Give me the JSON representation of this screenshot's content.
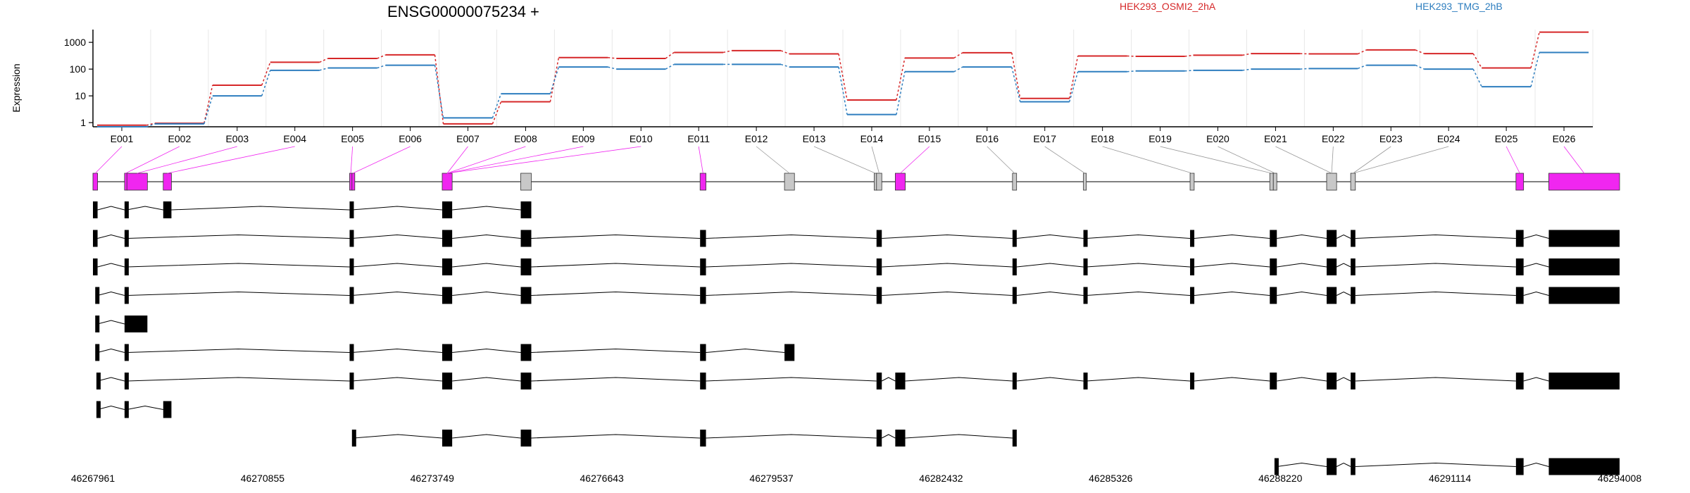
{
  "colors": {
    "series1": "#d62728",
    "series2": "#2e7ebf",
    "highlight": "#f026f0",
    "nonsig": "#c8c8c8",
    "transcript": "#000000",
    "grid": "#e8e8e8"
  },
  "chart_data": {
    "type": "line",
    "title": "ENSG00000075234 +",
    "ylabel": "Expression",
    "xlabel": "",
    "yscale": "log",
    "ylim": [
      0.7,
      3000
    ],
    "yticks": [
      "1",
      "10",
      "100",
      "1000"
    ],
    "categories": [
      "E001",
      "E002",
      "E003",
      "E004",
      "E005",
      "E006",
      "E007",
      "E008",
      "E009",
      "E010",
      "E011",
      "E012",
      "E013",
      "E014",
      "E015",
      "E016",
      "E017",
      "E018",
      "E019",
      "E020",
      "E021",
      "E022",
      "E023",
      "E024",
      "E025",
      "E026"
    ],
    "series": [
      {
        "name": "HEK293_OSMI2_2hA",
        "values": [
          0.8,
          0.95,
          25,
          180,
          250,
          340,
          0.9,
          6,
          270,
          250,
          420,
          490,
          370,
          7,
          260,
          410,
          8,
          310,
          300,
          330,
          380,
          370,
          520,
          380,
          110,
          2400
        ]
      },
      {
        "name": "HEK293_TMG_2hB",
        "values": [
          0.7,
          0.9,
          10,
          90,
          110,
          140,
          1.5,
          12,
          120,
          100,
          150,
          150,
          120,
          2,
          80,
          120,
          6,
          80,
          85,
          90,
          100,
          105,
          140,
          100,
          22,
          420
        ]
      }
    ],
    "genome_ticks": [
      "46267961",
      "46270855",
      "46273749",
      "46276643",
      "46279537",
      "46282432",
      "46285326",
      "46288220",
      "46291114",
      "46294008"
    ],
    "genome_range": [
      46267961,
      46294008
    ],
    "exons": [
      {
        "id": "E001",
        "start": 46267961,
        "end": 46268040,
        "sig": true
      },
      {
        "id": "E002",
        "start": 46268500,
        "end": 46268540,
        "sig": true
      },
      {
        "id": "E003",
        "start": 46268540,
        "end": 46268890,
        "sig": true
      },
      {
        "id": "E004",
        "start": 46269160,
        "end": 46269300,
        "sig": true
      },
      {
        "id": "E005",
        "start": 46272340,
        "end": 46272380,
        "sig": true
      },
      {
        "id": "E006",
        "start": 46272380,
        "end": 46272410,
        "sig": true
      },
      {
        "id": "E007",
        "start": 46273920,
        "end": 46274090,
        "sig": true
      },
      {
        "id": "E008",
        "start": 46275260,
        "end": 46275440,
        "sig": false
      },
      {
        "id": "E009",
        "start": 46278320,
        "end": 46278420,
        "sig": true
      },
      {
        "id": "E010",
        "start": 46279760,
        "end": 46279930,
        "sig": false
      },
      {
        "id": "E011",
        "start": 46281290,
        "end": 46281330,
        "sig": false
      },
      {
        "id": "E012",
        "start": 46281330,
        "end": 46281420,
        "sig": false
      },
      {
        "id": "E013",
        "start": 46281650,
        "end": 46281820,
        "sig": true
      },
      {
        "id": "E014",
        "start": 46283650,
        "end": 46283720,
        "sig": false
      },
      {
        "id": "E015",
        "start": 46284860,
        "end": 46284910,
        "sig": false
      },
      {
        "id": "E016",
        "start": 46286680,
        "end": 46286750,
        "sig": false
      },
      {
        "id": "E017",
        "start": 46288040,
        "end": 46288100,
        "sig": false
      },
      {
        "id": "E018",
        "start": 46288100,
        "end": 46288160,
        "sig": false
      },
      {
        "id": "E019",
        "start": 46289010,
        "end": 46289180,
        "sig": false
      },
      {
        "id": "E020",
        "start": 46289420,
        "end": 46289500,
        "sig": false
      },
      {
        "id": "E021",
        "start": 46292240,
        "end": 46292370,
        "sig": true
      },
      {
        "id": "E022",
        "start": 46292800,
        "end": 46294008,
        "sig": true
      }
    ],
    "exon_label_links": [
      0,
      1,
      2,
      3,
      4,
      5,
      6,
      7,
      8,
      9,
      10,
      12,
      13,
      14,
      14,
      15,
      16,
      19,
      20,
      20,
      21,
      22,
      23,
      23,
      24,
      25
    ],
    "exon_label_links_targets": [
      0,
      1,
      2,
      3,
      4,
      5,
      6,
      6,
      6,
      6,
      8,
      9,
      10,
      11,
      12,
      13,
      14,
      15,
      16,
      17,
      18,
      18,
      19,
      19,
      20,
      21
    ],
    "transcripts": [
      [
        [
          46267961,
          46268040
        ],
        [
          46268500,
          46268540
        ],
        [
          46269160,
          46269300
        ],
        [
          46272340,
          46272380
        ],
        [
          46273920,
          46274090
        ],
        [
          46275260,
          46275440
        ]
      ],
      [
        [
          46267961,
          46268040
        ],
        [
          46268500,
          46268540
        ],
        [
          46272340,
          46272380
        ],
        [
          46273920,
          46274090
        ],
        [
          46275260,
          46275440
        ],
        [
          46278320,
          46278420
        ],
        [
          46281330,
          46281420
        ],
        [
          46283650,
          46283720
        ],
        [
          46284860,
          46284910
        ],
        [
          46286680,
          46286750
        ],
        [
          46288040,
          46288160
        ],
        [
          46289010,
          46289180
        ],
        [
          46289420,
          46289500
        ],
        [
          46292240,
          46292370
        ],
        [
          46292800,
          46294008
        ]
      ],
      [
        [
          46267961,
          46268040
        ],
        [
          46268500,
          46268540
        ],
        [
          46272340,
          46272380
        ],
        [
          46273920,
          46274090
        ],
        [
          46275260,
          46275440
        ],
        [
          46278320,
          46278420
        ],
        [
          46281330,
          46281420
        ],
        [
          46283650,
          46283720
        ],
        [
          46284860,
          46284910
        ],
        [
          46286680,
          46286750
        ],
        [
          46288040,
          46288160
        ],
        [
          46289010,
          46289180
        ],
        [
          46289420,
          46289500
        ],
        [
          46292240,
          46292370
        ],
        [
          46292800,
          46294008
        ]
      ],
      [
        [
          46268000,
          46268040
        ],
        [
          46268500,
          46268540
        ],
        [
          46272340,
          46272380
        ],
        [
          46273920,
          46274090
        ],
        [
          46275260,
          46275440
        ],
        [
          46278320,
          46278420
        ],
        [
          46281330,
          46281420
        ],
        [
          46283650,
          46283720
        ],
        [
          46284860,
          46284910
        ],
        [
          46286680,
          46286750
        ],
        [
          46288040,
          46288160
        ],
        [
          46289010,
          46289180
        ],
        [
          46289420,
          46289500
        ],
        [
          46292240,
          46292370
        ],
        [
          46292800,
          46294008
        ]
      ],
      [
        [
          46268000,
          46268040
        ],
        [
          46268500,
          46268890
        ]
      ],
      [
        [
          46268000,
          46268040
        ],
        [
          46268500,
          46268540
        ],
        [
          46272340,
          46272380
        ],
        [
          46273920,
          46274090
        ],
        [
          46275260,
          46275440
        ],
        [
          46278320,
          46278420
        ],
        [
          46279760,
          46279930
        ]
      ],
      [
        [
          46268020,
          46268040
        ],
        [
          46268500,
          46268540
        ],
        [
          46272340,
          46272380
        ],
        [
          46273920,
          46274090
        ],
        [
          46275260,
          46275440
        ],
        [
          46278320,
          46278420
        ],
        [
          46281330,
          46281420
        ],
        [
          46281650,
          46281820
        ],
        [
          46283650,
          46283720
        ],
        [
          46284860,
          46284910
        ],
        [
          46286680,
          46286750
        ],
        [
          46288040,
          46288160
        ],
        [
          46289010,
          46289180
        ],
        [
          46289420,
          46289500
        ],
        [
          46292240,
          46292370
        ],
        [
          46292800,
          46294008
        ]
      ],
      [
        [
          46268020,
          46268040
        ],
        [
          46268500,
          46268540
        ],
        [
          46269160,
          46269300
        ]
      ],
      [
        [
          46272380,
          46272410
        ],
        [
          46273920,
          46274090
        ],
        [
          46275260,
          46275440
        ],
        [
          46278320,
          46278420
        ],
        [
          46281330,
          46281420
        ],
        [
          46281650,
          46281820
        ],
        [
          46283650,
          46283720
        ]
      ],
      [
        [
          46288120,
          46288160
        ],
        [
          46289010,
          46289180
        ],
        [
          46289420,
          46289500
        ],
        [
          46292240,
          46292370
        ],
        [
          46292800,
          46294008
        ]
      ]
    ]
  }
}
